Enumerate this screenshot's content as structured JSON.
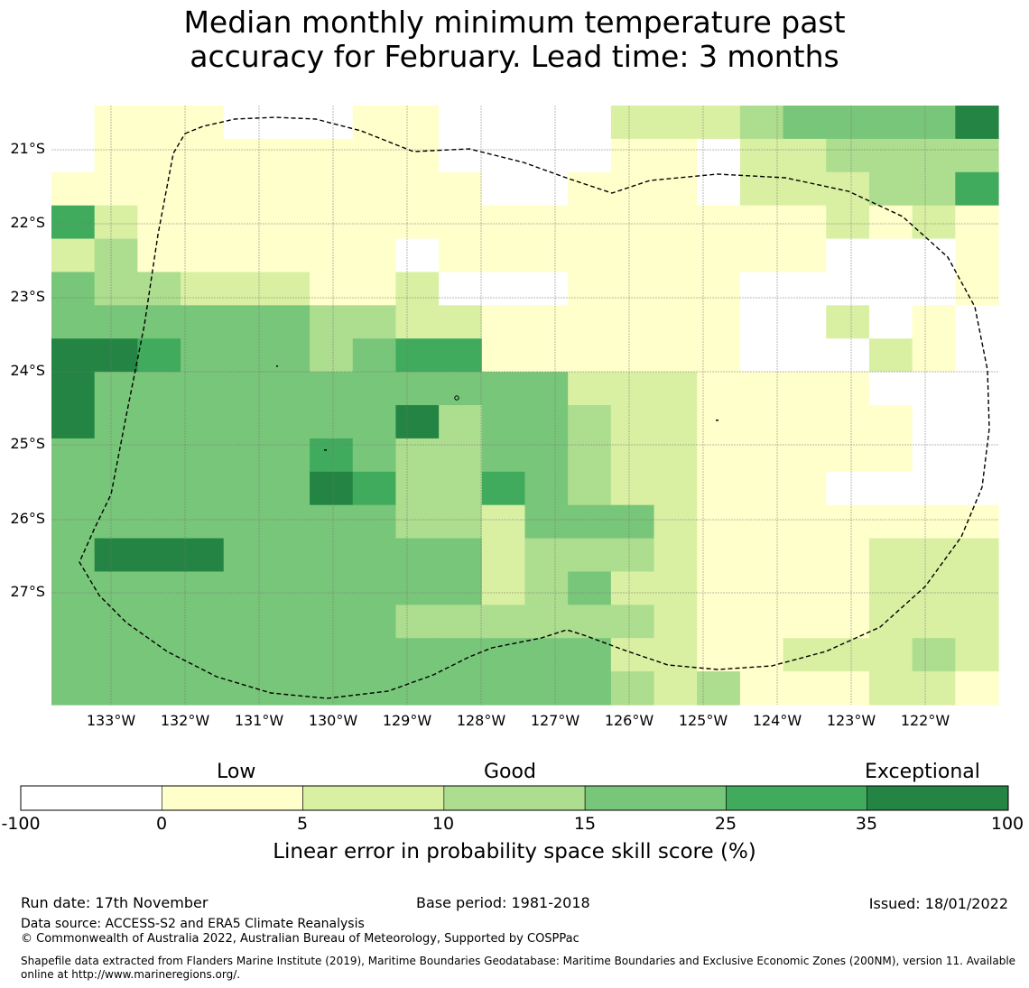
{
  "title": {
    "line1": "Median monthly minimum temperature past",
    "line2": "accuracy for February. Lead time: 3 months"
  },
  "map": {
    "lat_labels": [
      "21°S",
      "22°S",
      "23°S",
      "24°S",
      "25°S",
      "26°S",
      "27°S"
    ],
    "lon_labels": [
      "133°W",
      "132°W",
      "131°W",
      "130°W",
      "129°W",
      "128°W",
      "127°W",
      "126°W",
      "125°W",
      "124°W",
      "123°W",
      "122°W"
    ],
    "grid": [
      "0111000110000222344446",
      "0111111110000110223333",
      "1111111111001110222335",
      "5211111111111111112121",
      "2311111101111111110001",
      "4332221120001111000001",
      "4444443322111111002010",
      "6654443455111111000210",
      "6444444444442221111000",
      "6444444463443221111100",
      "4444445433443221111100",
      "4444446533543221110000",
      "4444444433244421111111",
      "4666444444233321111222",
      "4444444444234221111222",
      "4444444433333321111222",
      "4444444444444221122232",
      "4444444444444323111221"
    ]
  },
  "legend": {
    "categories": [
      "Low",
      "Good",
      "Exceptional"
    ],
    "colors": [
      "#ffffff",
      "#ffffcc",
      "#d9f0a3",
      "#addd8e",
      "#78c679",
      "#41ab5d",
      "#238443"
    ],
    "ticks": [
      "-100",
      "0",
      "5",
      "10",
      "15",
      "25",
      "35",
      "100"
    ],
    "title": "Linear error in probability space skill score (%)"
  },
  "footer": {
    "run_date": "Run date: 17th November",
    "base_period": "Base period: 1981-2018",
    "issued": "Issued: 18/01/2022",
    "data_source": "Data source: ACCESS-S2 and ERA5 Climate Reanalysis",
    "copyright": "© Commonwealth of Australia 2022, Australian Bureau of Meteorology, Supported by COSPPac",
    "shapefile_line1": "Shapefile data extracted from Flanders Marine Institute (2019), Maritime Boundaries Geodatabase: Maritime Boundaries and Exclusive Economic Zones (200NM), version 11. Available",
    "shapefile_line2": "online at http://www.marineregions.org/."
  }
}
